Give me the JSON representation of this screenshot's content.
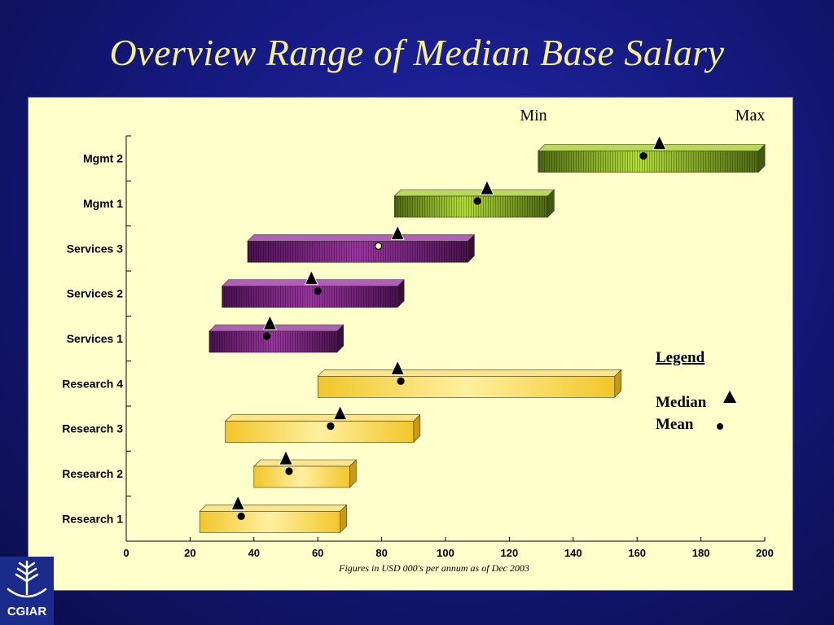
{
  "slide": {
    "title": "Overview Range of Median Base Salary"
  },
  "logo": {
    "text": "CGIAR"
  },
  "colors": {
    "background": "#151a80",
    "title": "#f6ee92",
    "panel": "#ffffcc",
    "mgmt_bar": "#8fb628",
    "services_bar": "#7a2480",
    "research_bar": "#f5d24a"
  },
  "chart_data": {
    "type": "bar",
    "orientation": "horizontal-range",
    "header_left": "Min",
    "header_right": "Max",
    "footnote": "Figures in USD 000's per annum as of Dec 2003",
    "xlim": [
      0,
      200
    ],
    "xticks": [
      0,
      20,
      40,
      60,
      80,
      100,
      120,
      140,
      160,
      180,
      200
    ],
    "grid": false,
    "legend": {
      "title": "Legend",
      "position": "right",
      "items": [
        {
          "label": "Median",
          "marker": "triangle"
        },
        {
          "label": "Mean",
          "marker": "circle"
        }
      ]
    },
    "categories": [
      "Mgmt 2",
      "Mgmt 1",
      "Services 3",
      "Services 2",
      "Services 1",
      "Research 4",
      "Research 3",
      "Research 2",
      "Research 1"
    ],
    "rows": [
      {
        "category": "Mgmt 2",
        "min": 129,
        "max": 198,
        "median": 167,
        "mean": 162,
        "group": "mgmt"
      },
      {
        "category": "Mgmt 1",
        "min": 84,
        "max": 132,
        "median": 113,
        "mean": 110,
        "group": "mgmt"
      },
      {
        "category": "Services 3",
        "min": 38,
        "max": 107,
        "median": 85,
        "mean": 79,
        "group": "services"
      },
      {
        "category": "Services 2",
        "min": 30,
        "max": 85,
        "median": 58,
        "mean": 60,
        "group": "services"
      },
      {
        "category": "Services 1",
        "min": 26,
        "max": 66,
        "median": 45,
        "mean": 44,
        "group": "services"
      },
      {
        "category": "Research 4",
        "min": 60,
        "max": 153,
        "median": 85,
        "mean": 86,
        "group": "research"
      },
      {
        "category": "Research 3",
        "min": 31,
        "max": 90,
        "median": 67,
        "mean": 64,
        "group": "research"
      },
      {
        "category": "Research 2",
        "min": 40,
        "max": 70,
        "median": 50,
        "mean": 51,
        "group": "research"
      },
      {
        "category": "Research 1",
        "min": 23,
        "max": 67,
        "median": 35,
        "mean": 36,
        "group": "research"
      }
    ]
  }
}
